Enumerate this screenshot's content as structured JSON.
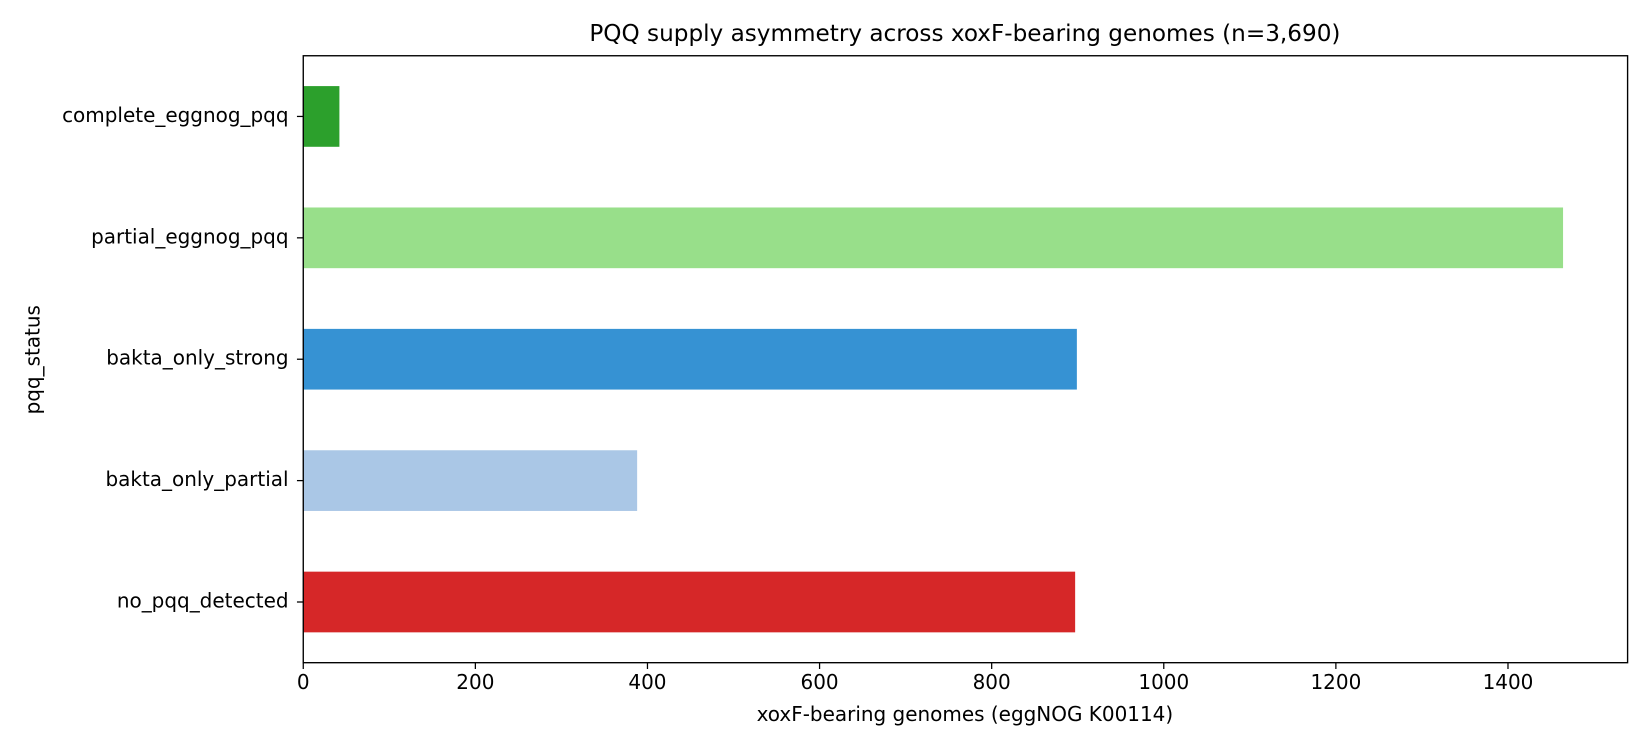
{
  "chart_data": {
    "type": "barh",
    "title": "PQQ supply asymmetry across xoxF-bearing genomes (n=3,690)",
    "xlabel": "xoxF-bearing genomes (eggNOG K00114)",
    "ylabel": "pqq_status",
    "categories": [
      "complete_eggnog_pqq",
      "partial_eggnog_pqq",
      "bakta_only_strong",
      "bakta_only_partial",
      "no_pqq_detected"
    ],
    "values": [
      42,
      1464,
      899,
      388,
      897
    ],
    "colors": [
      "#2ca02c",
      "#98df8a",
      "#3692d3",
      "#aac7e6",
      "#d62728"
    ],
    "xlim": [
      0,
      1539
    ],
    "xticks": [
      0,
      200,
      400,
      600,
      800,
      1000,
      1200,
      1400
    ]
  }
}
